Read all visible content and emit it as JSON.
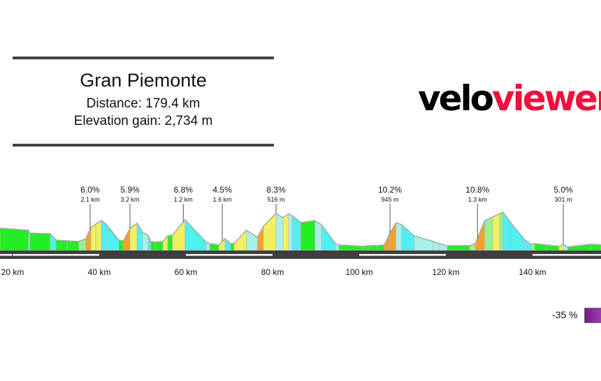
{
  "header": {
    "title": "Gran Piemonte",
    "distance": "Distance: 179.4 km",
    "elevation_gain": "Elevation gain: 2,734 m"
  },
  "logo": {
    "part1": "velo",
    "part2": "viewer",
    "colors": {
      "velo": "#000000",
      "viewer": "#f0103c"
    }
  },
  "legend": {
    "label": "-35 %",
    "color": "#8a2a9a"
  },
  "chart_data": {
    "type": "area",
    "title": "",
    "xlabel": "",
    "ylabel": "",
    "xlim": [
      17.1,
      155.8
    ],
    "x_ticks": [
      {
        "km": 20,
        "label": "20 km"
      },
      {
        "km": 40,
        "label": "40 km"
      },
      {
        "km": 60,
        "label": "60 km"
      },
      {
        "km": 80,
        "label": "80 km"
      },
      {
        "km": 100,
        "label": "100 km"
      },
      {
        "km": 120,
        "label": "120 km"
      },
      {
        "km": 140,
        "label": "140 km"
      }
    ],
    "grid": false,
    "profile_km": [
      17.1,
      23.7,
      24.0,
      28.7,
      30.0,
      32.6,
      35.3,
      36.9,
      38.1,
      39.2,
      40.5,
      41.6,
      44.5,
      45.6,
      47.1,
      48.7,
      50.0,
      51.3,
      51.9,
      52.9,
      54.7,
      55.8,
      56.9,
      59.8,
      64.7,
      65.5,
      67.6,
      69.0,
      70.3,
      71.1,
      74.0,
      76.5,
      77.9,
      80.8,
      82.4,
      83.7,
      84.5,
      85.3,
      86.5,
      89.8,
      91.3,
      94.5,
      95.3,
      101.0,
      102.1,
      104.2,
      105.8,
      107.1,
      108.5,
      109.8,
      112.7,
      117.1,
      118.4,
      120.3,
      125.5,
      126.8,
      129.0,
      130.8,
      132.4,
      133.2,
      135.2,
      138.1,
      139.7,
      140.5,
      143.2,
      146.1,
      147.1,
      148.1,
      153.4,
      155.8
    ],
    "profile_elevation": [
      470,
      440,
      400,
      390,
      300,
      290,
      280,
      320,
      480,
      530,
      580,
      530,
      300,
      290,
      470,
      540,
      410,
      370,
      280,
      270,
      280,
      360,
      370,
      590,
      270,
      250,
      230,
      320,
      250,
      250,
      440,
      340,
      500,
      680,
      620,
      680,
      650,
      610,
      550,
      580,
      520,
      250,
      230,
      210,
      220,
      220,
      230,
      400,
      550,
      520,
      360,
      280,
      250,
      220,
      220,
      250,
      580,
      630,
      680,
      700,
      530,
      310,
      240,
      250,
      230,
      210,
      240,
      200,
      240,
      230
    ],
    "climbs": [
      {
        "km": 37.9,
        "gradient": "6.0%",
        "length": "2.1 km"
      },
      {
        "km": 47.1,
        "gradient": "5.9%",
        "length": "3.2 km"
      },
      {
        "km": 59.4,
        "gradient": "6.8%",
        "length": "1.2 km"
      },
      {
        "km": 68.4,
        "gradient": "4.5%",
        "length": "1.6 km"
      },
      {
        "km": 80.8,
        "gradient": "8.3%",
        "length": "516 m"
      },
      {
        "km": 107.1,
        "gradient": "10.2%",
        "length": "945 m"
      },
      {
        "km": 127.3,
        "gradient": "10.8%",
        "length": "1.3 km"
      },
      {
        "km": 147.1,
        "gradient": "5.0%",
        "length": "301 m"
      }
    ],
    "gradient_colors": {
      "steep_descent": "#4ef0f0",
      "descent": "#a8f0ec",
      "flat": "#22ee22",
      "gentle": "#98f090",
      "climb": "#f0f060",
      "steep": "#f0a030"
    }
  }
}
